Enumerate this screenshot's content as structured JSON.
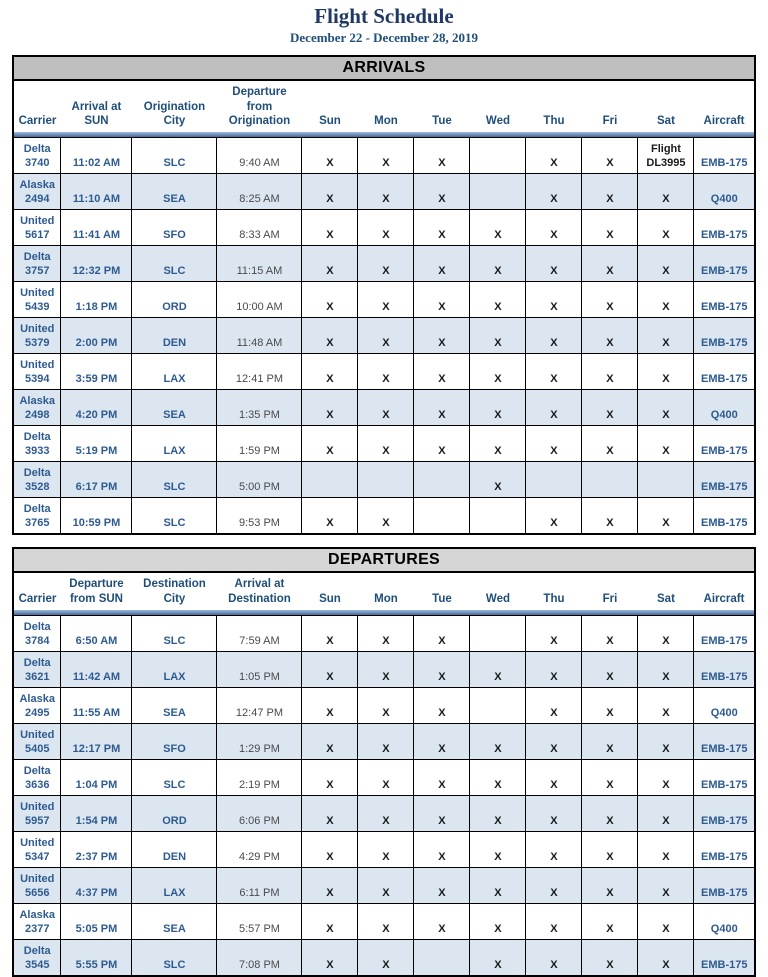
{
  "page": {
    "title": "Flight Schedule",
    "subtitle": "December 22 - December 28, 2019"
  },
  "colors": {
    "title_navy": "#1F3864",
    "header_blue": "#1F4E79",
    "data_blue": "#2E5B8F",
    "band_blue": "#DCE6F1",
    "arrivals_band_gray": "#BFBFBF",
    "departures_band_gray": "#D6D6D6",
    "divider_blue": "#49699C"
  },
  "arrivals": {
    "section_title": "ARRIVALS",
    "headers": [
      "Carrier",
      "Arrival at\nSUN",
      "Origination\nCity",
      "Departure\nfrom\nOrigination",
      "Sun",
      "Mon",
      "Tue",
      "Wed",
      "Thu",
      "Fri",
      "Sat",
      "Aircraft"
    ],
    "rows": [
      {
        "carrier": "Delta\n3740",
        "time": "11:02 AM",
        "city": "SLC",
        "time2": "9:40 AM",
        "days": [
          "X",
          "X",
          "X",
          "",
          "X",
          "X",
          "Flight\nDL3995"
        ],
        "aircraft": "EMB-175"
      },
      {
        "carrier": "Alaska\n2494",
        "time": "11:10 AM",
        "city": "SEA",
        "time2": "8:25 AM",
        "days": [
          "X",
          "X",
          "X",
          "",
          "X",
          "X",
          "X"
        ],
        "aircraft": "Q400"
      },
      {
        "carrier": "United\n5617",
        "time": "11:41 AM",
        "city": "SFO",
        "time2": "8:33 AM",
        "days": [
          "X",
          "X",
          "X",
          "X",
          "X",
          "X",
          "X"
        ],
        "aircraft": "EMB-175"
      },
      {
        "carrier": "Delta\n3757",
        "time": "12:32 PM",
        "city": "SLC",
        "time2": "11:15 AM",
        "days": [
          "X",
          "X",
          "X",
          "X",
          "X",
          "X",
          "X"
        ],
        "aircraft": "EMB-175"
      },
      {
        "carrier": "United\n5439",
        "time": "1:18 PM",
        "city": "ORD",
        "time2": "10:00 AM",
        "days": [
          "X",
          "X",
          "X",
          "X",
          "X",
          "X",
          "X"
        ],
        "aircraft": "EMB-175"
      },
      {
        "carrier": "United\n5379",
        "time": "2:00 PM",
        "city": "DEN",
        "time2": "11:48 AM",
        "days": [
          "X",
          "X",
          "X",
          "X",
          "X",
          "X",
          "X"
        ],
        "aircraft": "EMB-175"
      },
      {
        "carrier": "United\n5394",
        "time": "3:59 PM",
        "city": "LAX",
        "time2": "12:41 PM",
        "days": [
          "X",
          "X",
          "X",
          "X",
          "X",
          "X",
          "X"
        ],
        "aircraft": "EMB-175"
      },
      {
        "carrier": "Alaska\n2498",
        "time": "4:20 PM",
        "city": "SEA",
        "time2": "1:35 PM",
        "days": [
          "X",
          "X",
          "X",
          "X",
          "X",
          "X",
          "X"
        ],
        "aircraft": "Q400"
      },
      {
        "carrier": "Delta\n3933",
        "time": "5:19 PM",
        "city": "LAX",
        "time2": "1:59 PM",
        "days": [
          "X",
          "X",
          "X",
          "X",
          "X",
          "X",
          "X"
        ],
        "aircraft": "EMB-175"
      },
      {
        "carrier": "Delta\n3528",
        "time": "6:17 PM",
        "city": "SLC",
        "time2": "5:00 PM",
        "days": [
          "",
          "",
          "",
          "X",
          "",
          "",
          ""
        ],
        "aircraft": "EMB-175"
      },
      {
        "carrier": "Delta\n3765",
        "time": "10:59 PM",
        "city": "SLC",
        "time2": "9:53 PM",
        "days": [
          "X",
          "X",
          "",
          "",
          "X",
          "X",
          "X"
        ],
        "aircraft": "EMB-175"
      }
    ]
  },
  "departures": {
    "section_title": "DEPARTURES",
    "headers": [
      "Carrier",
      "Departure\nfrom SUN",
      "Destination\nCity",
      "Arrival at\nDestination",
      "Sun",
      "Mon",
      "Tue",
      "Wed",
      "Thu",
      "Fri",
      "Sat",
      "Aircraft"
    ],
    "rows": [
      {
        "carrier": "Delta\n3784",
        "time": "6:50 AM",
        "city": "SLC",
        "time2": "7:59 AM",
        "days": [
          "X",
          "X",
          "X",
          "",
          "X",
          "X",
          "X"
        ],
        "aircraft": "EMB-175"
      },
      {
        "carrier": "Delta\n3621",
        "time": "11:42 AM",
        "city": "LAX",
        "time2": "1:05 PM",
        "days": [
          "X",
          "X",
          "X",
          "X",
          "X",
          "X",
          "X"
        ],
        "aircraft": "EMB-175"
      },
      {
        "carrier": "Alaska\n2495",
        "time": "11:55 AM",
        "city": "SEA",
        "time2": "12:47 PM",
        "days": [
          "X",
          "X",
          "X",
          "",
          "X",
          "X",
          "X"
        ],
        "aircraft": "Q400"
      },
      {
        "carrier": "United\n5405",
        "time": "12:17 PM",
        "city": "SFO",
        "time2": "1:29 PM",
        "days": [
          "X",
          "X",
          "X",
          "X",
          "X",
          "X",
          "X"
        ],
        "aircraft": "EMB-175"
      },
      {
        "carrier": "Delta\n3636",
        "time": "1:04 PM",
        "city": "SLC",
        "time2": "2:19 PM",
        "days": [
          "X",
          "X",
          "X",
          "X",
          "X",
          "X",
          "X"
        ],
        "aircraft": "EMB-175"
      },
      {
        "carrier": "United\n5957",
        "time": "1:54 PM",
        "city": "ORD",
        "time2": "6:06 PM",
        "days": [
          "X",
          "X",
          "X",
          "X",
          "X",
          "X",
          "X"
        ],
        "aircraft": "EMB-175"
      },
      {
        "carrier": "United\n5347",
        "time": "2:37 PM",
        "city": "DEN",
        "time2": "4:29 PM",
        "days": [
          "X",
          "X",
          "X",
          "X",
          "X",
          "X",
          "X"
        ],
        "aircraft": "EMB-175"
      },
      {
        "carrier": "United\n5656",
        "time": "4:37 PM",
        "city": "LAX",
        "time2": "6:11 PM",
        "days": [
          "X",
          "X",
          "X",
          "X",
          "X",
          "X",
          "X"
        ],
        "aircraft": "EMB-175"
      },
      {
        "carrier": "Alaska\n2377",
        "time": "5:05 PM",
        "city": "SEA",
        "time2": "5:57 PM",
        "days": [
          "X",
          "X",
          "X",
          "X",
          "X",
          "X",
          "X"
        ],
        "aircraft": "Q400"
      },
      {
        "carrier": "Delta\n3545",
        "time": "5:55 PM",
        "city": "SLC",
        "time2": "7:08 PM",
        "days": [
          "X",
          "X",
          "",
          "X",
          "X",
          "X",
          "X"
        ],
        "aircraft": "EMB-175"
      }
    ]
  },
  "day_keys": [
    "sun",
    "mon",
    "tue",
    "wed",
    "thu",
    "fri",
    "sat"
  ]
}
